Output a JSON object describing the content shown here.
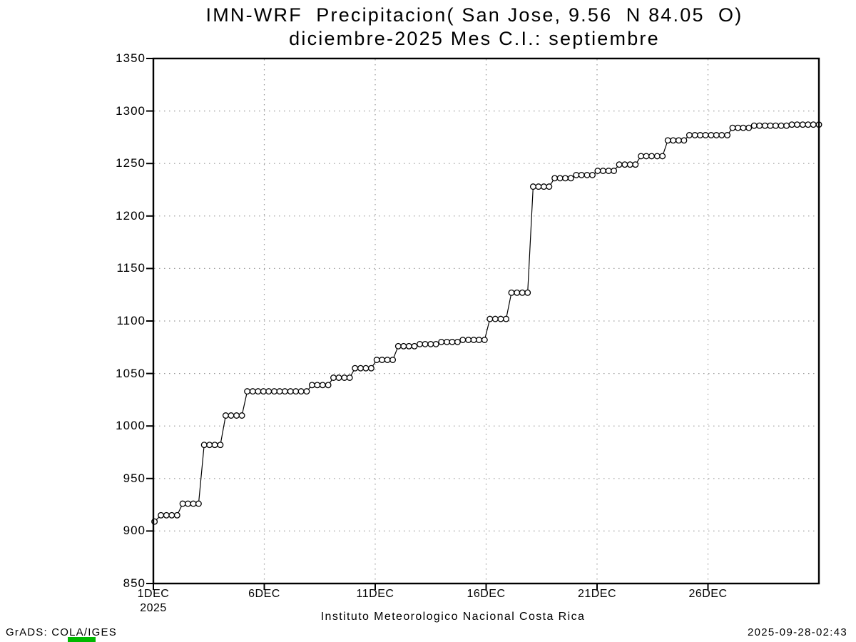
{
  "header": {
    "window_kind": "GrADS plot image"
  },
  "footer": {
    "grads_credit": "GrADS: COLA/IGES",
    "generated_timestamp": "2025-09-28-02:43"
  },
  "colors": {
    "background": "#ffffff",
    "line": "#000000",
    "marker_fill": "#ffffff",
    "grid": "#9a9a9a",
    "text": "#000000",
    "stamp_green": "#00b800"
  },
  "chart_data": {
    "type": "line",
    "marker": "open-circle",
    "grid": "dotted",
    "legend": null,
    "title": "IMN-WRF  Precipitacion( San Jose, 9.56  N 84.05  O)",
    "subtitle": "diciembre-2025 Mes C.I.: septiembre",
    "xlabel": "Instituto Meteorologico Nacional Costa Rica",
    "ylabel": "",
    "xlim": [
      1,
      31
    ],
    "ylim": [
      850,
      1350
    ],
    "y_ticks": [
      850,
      900,
      950,
      1000,
      1050,
      1100,
      1150,
      1200,
      1250,
      1300,
      1350
    ],
    "x_tick_days": [
      1,
      6,
      11,
      16,
      21,
      26
    ],
    "x_tick_labels": [
      "1DEC",
      "6DEC",
      "11DEC",
      "16DEC",
      "21DEC",
      "26DEC"
    ],
    "x_year_label": "2025",
    "x_grid_days": [
      6,
      11,
      16,
      21,
      26
    ],
    "series": [
      {
        "name": "cumulative-precipitation-mm",
        "points": [
          [
            1.05,
            909
          ],
          [
            1.34,
            915
          ],
          [
            1.59,
            915
          ],
          [
            1.83,
            915
          ],
          [
            2.07,
            915
          ],
          [
            2.32,
            926
          ],
          [
            2.56,
            926
          ],
          [
            2.8,
            926
          ],
          [
            3.04,
            926
          ],
          [
            3.29,
            982
          ],
          [
            3.53,
            982
          ],
          [
            3.77,
            982
          ],
          [
            4.02,
            982
          ],
          [
            4.26,
            1010
          ],
          [
            4.5,
            1010
          ],
          [
            4.75,
            1010
          ],
          [
            4.99,
            1010
          ],
          [
            5.23,
            1033
          ],
          [
            5.48,
            1033
          ],
          [
            5.72,
            1033
          ],
          [
            5.96,
            1033
          ],
          [
            6.2,
            1033
          ],
          [
            6.45,
            1033
          ],
          [
            6.69,
            1033
          ],
          [
            6.93,
            1033
          ],
          [
            7.18,
            1033
          ],
          [
            7.42,
            1033
          ],
          [
            7.66,
            1033
          ],
          [
            7.91,
            1033
          ],
          [
            8.15,
            1039
          ],
          [
            8.39,
            1039
          ],
          [
            8.63,
            1039
          ],
          [
            8.88,
            1039
          ],
          [
            9.12,
            1046
          ],
          [
            9.36,
            1046
          ],
          [
            9.61,
            1046
          ],
          [
            9.85,
            1046
          ],
          [
            10.09,
            1055
          ],
          [
            10.34,
            1055
          ],
          [
            10.58,
            1055
          ],
          [
            10.82,
            1055
          ],
          [
            11.07,
            1063
          ],
          [
            11.31,
            1063
          ],
          [
            11.55,
            1063
          ],
          [
            11.79,
            1063
          ],
          [
            12.04,
            1076
          ],
          [
            12.28,
            1076
          ],
          [
            12.52,
            1076
          ],
          [
            12.77,
            1076
          ],
          [
            13.01,
            1078
          ],
          [
            13.25,
            1078
          ],
          [
            13.5,
            1078
          ],
          [
            13.74,
            1078
          ],
          [
            13.98,
            1080
          ],
          [
            14.23,
            1080
          ],
          [
            14.47,
            1080
          ],
          [
            14.71,
            1080
          ],
          [
            14.95,
            1082
          ],
          [
            15.2,
            1082
          ],
          [
            15.44,
            1082
          ],
          [
            15.68,
            1082
          ],
          [
            15.93,
            1082
          ],
          [
            16.17,
            1102
          ],
          [
            16.41,
            1102
          ],
          [
            16.66,
            1102
          ],
          [
            16.9,
            1102
          ],
          [
            17.14,
            1127
          ],
          [
            17.39,
            1127
          ],
          [
            17.63,
            1127
          ],
          [
            17.87,
            1127
          ],
          [
            18.12,
            1228
          ],
          [
            18.36,
            1228
          ],
          [
            18.6,
            1228
          ],
          [
            18.84,
            1228
          ],
          [
            19.09,
            1236
          ],
          [
            19.33,
            1236
          ],
          [
            19.57,
            1236
          ],
          [
            19.82,
            1236
          ],
          [
            20.06,
            1239
          ],
          [
            20.3,
            1239
          ],
          [
            20.55,
            1239
          ],
          [
            20.79,
            1239
          ],
          [
            21.03,
            1243
          ],
          [
            21.27,
            1243
          ],
          [
            21.52,
            1243
          ],
          [
            21.76,
            1243
          ],
          [
            22.0,
            1249
          ],
          [
            22.25,
            1249
          ],
          [
            22.49,
            1249
          ],
          [
            22.73,
            1249
          ],
          [
            22.98,
            1257
          ],
          [
            23.22,
            1257
          ],
          [
            23.46,
            1257
          ],
          [
            23.71,
            1257
          ],
          [
            23.95,
            1257
          ],
          [
            24.19,
            1272
          ],
          [
            24.43,
            1272
          ],
          [
            24.68,
            1272
          ],
          [
            24.92,
            1272
          ],
          [
            25.16,
            1277
          ],
          [
            25.41,
            1277
          ],
          [
            25.65,
            1277
          ],
          [
            25.89,
            1277
          ],
          [
            26.14,
            1277
          ],
          [
            26.38,
            1277
          ],
          [
            26.62,
            1277
          ],
          [
            26.87,
            1277
          ],
          [
            27.11,
            1284
          ],
          [
            27.35,
            1284
          ],
          [
            27.59,
            1284
          ],
          [
            27.84,
            1284
          ],
          [
            28.08,
            1286
          ],
          [
            28.32,
            1286
          ],
          [
            28.57,
            1286
          ],
          [
            28.81,
            1286
          ],
          [
            29.05,
            1286
          ],
          [
            29.3,
            1286
          ],
          [
            29.54,
            1286
          ],
          [
            29.78,
            1287
          ],
          [
            30.02,
            1287
          ],
          [
            30.27,
            1287
          ],
          [
            30.51,
            1287
          ],
          [
            30.75,
            1287
          ],
          [
            31.0,
            1287
          ]
        ]
      }
    ]
  }
}
